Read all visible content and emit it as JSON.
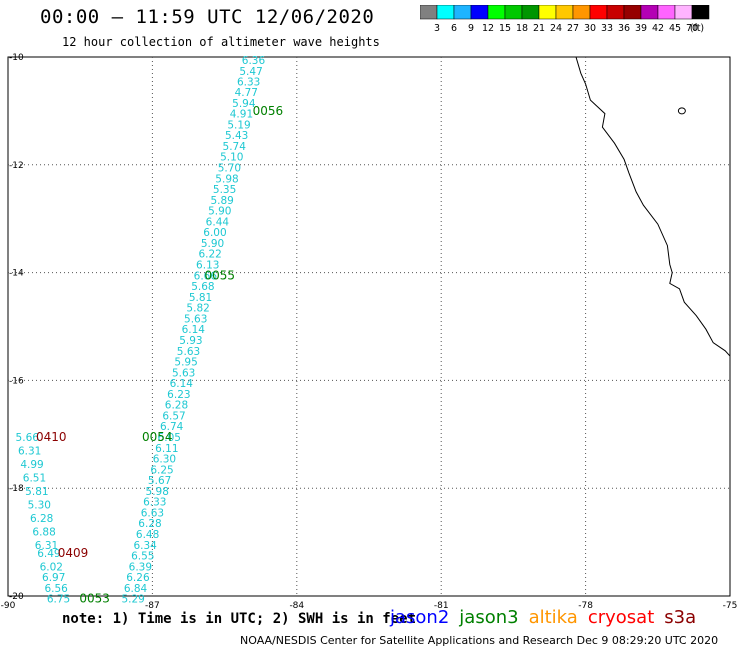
{
  "header": {
    "title": "00:00 – 11:59 UTC 12/06/2020",
    "subtitle": "12 hour collection of altimeter wave heights"
  },
  "colorbar": {
    "unit": "(ft)",
    "colors": [
      "#808080",
      "#00ffff",
      "#1eb4ff",
      "#0000ff",
      "#00ff00",
      "#00c800",
      "#009600",
      "#ffff00",
      "#ffc800",
      "#ff9600",
      "#ff0000",
      "#c80000",
      "#960000",
      "#b400b4",
      "#ff64ff",
      "#ffb4ff",
      "#000000"
    ],
    "labels": [
      "3",
      "6",
      "9",
      "12",
      "15",
      "18",
      "21",
      "24",
      "27",
      "30",
      "33",
      "36",
      "39",
      "42",
      "45",
      "70"
    ]
  },
  "map": {
    "lon_range": [
      -90,
      -75
    ],
    "lat_range": [
      -20,
      -10
    ],
    "lon_ticks": [
      "-90",
      "-87",
      "-84",
      "-81",
      "-78",
      "-75"
    ],
    "lat_ticks": [
      "-10",
      "-12",
      "-14",
      "-16",
      "-18",
      "-20"
    ],
    "coast_color": "#000000",
    "grid_color": "#555555"
  },
  "tracks": [
    {
      "name": "main-track",
      "color": "#1ec8d2",
      "points": [
        {
          "lat": -10.06,
          "lon": -84.9,
          "swh": "6.36"
        },
        {
          "lat": -10.26,
          "lon": -84.95,
          "swh": "5.47"
        },
        {
          "lat": -10.45,
          "lon": -85.0,
          "swh": "6.33"
        },
        {
          "lat": -10.65,
          "lon": -85.05,
          "swh": "4.77"
        },
        {
          "lat": -10.85,
          "lon": -85.1,
          "swh": "5.94"
        },
        {
          "lat": -11.05,
          "lon": -85.15,
          "swh": "4.91"
        },
        {
          "lat": -11.25,
          "lon": -85.2,
          "swh": "5.19"
        },
        {
          "lat": -11.45,
          "lon": -85.25,
          "swh": "5.43"
        },
        {
          "lat": -11.65,
          "lon": -85.3,
          "swh": "5.74"
        },
        {
          "lat": -11.85,
          "lon": -85.35,
          "swh": "5.10"
        },
        {
          "lat": -12.05,
          "lon": -85.4,
          "swh": "5.70"
        },
        {
          "lat": -12.25,
          "lon": -85.45,
          "swh": "5.98"
        },
        {
          "lat": -12.45,
          "lon": -85.5,
          "swh": "5.35"
        },
        {
          "lat": -12.65,
          "lon": -85.55,
          "swh": "5.89"
        },
        {
          "lat": -12.85,
          "lon": -85.6,
          "swh": "5.90"
        },
        {
          "lat": -13.05,
          "lon": -85.65,
          "swh": "6.44"
        },
        {
          "lat": -13.25,
          "lon": -85.7,
          "swh": "6.00"
        },
        {
          "lat": -13.45,
          "lon": -85.75,
          "swh": "5.90"
        },
        {
          "lat": -13.65,
          "lon": -85.8,
          "swh": "6.22"
        },
        {
          "lat": -13.85,
          "lon": -85.85,
          "swh": "6.13"
        },
        {
          "lat": -14.05,
          "lon": -85.9,
          "swh": "6.66"
        },
        {
          "lat": -14.25,
          "lon": -85.95,
          "swh": "5.68"
        },
        {
          "lat": -14.45,
          "lon": -86.0,
          "swh": "5.81"
        },
        {
          "lat": -14.65,
          "lon": -86.05,
          "swh": "5.82"
        },
        {
          "lat": -14.85,
          "lon": -86.1,
          "swh": "5.63"
        },
        {
          "lat": -15.05,
          "lon": -86.15,
          "swh": "6.14"
        },
        {
          "lat": -15.25,
          "lon": -86.2,
          "swh": "5.93"
        },
        {
          "lat": -15.45,
          "lon": -86.25,
          "swh": "5.63"
        },
        {
          "lat": -15.65,
          "lon": -86.3,
          "swh": "5.95"
        },
        {
          "lat": -15.85,
          "lon": -86.35,
          "swh": "5.63"
        },
        {
          "lat": -16.05,
          "lon": -86.4,
          "swh": "6.14"
        },
        {
          "lat": -16.25,
          "lon": -86.45,
          "swh": "6.23"
        },
        {
          "lat": -16.45,
          "lon": -86.5,
          "swh": "6.28"
        },
        {
          "lat": -16.65,
          "lon": -86.55,
          "swh": "6.57"
        },
        {
          "lat": -16.85,
          "lon": -86.6,
          "swh": "6.74"
        },
        {
          "lat": -17.05,
          "lon": -86.65,
          "swh": "6.05"
        },
        {
          "lat": -17.25,
          "lon": -86.7,
          "swh": "6.11"
        },
        {
          "lat": -17.45,
          "lon": -86.75,
          "swh": "6.30"
        },
        {
          "lat": -17.65,
          "lon": -86.8,
          "swh": "6.25"
        },
        {
          "lat": -17.85,
          "lon": -86.85,
          "swh": "5.67"
        },
        {
          "lat": -18.05,
          "lon": -86.9,
          "swh": "5.98"
        },
        {
          "lat": -18.25,
          "lon": -86.95,
          "swh": "6.33"
        },
        {
          "lat": -18.45,
          "lon": -87.0,
          "swh": "6.63"
        },
        {
          "lat": -18.65,
          "lon": -87.05,
          "swh": "6.28"
        },
        {
          "lat": -18.85,
          "lon": -87.1,
          "swh": "6.48"
        },
        {
          "lat": -19.05,
          "lon": -87.15,
          "swh": "6.34"
        },
        {
          "lat": -19.25,
          "lon": -87.2,
          "swh": "6.55"
        },
        {
          "lat": -19.45,
          "lon": -87.25,
          "swh": "6.39"
        },
        {
          "lat": -19.65,
          "lon": -87.3,
          "swh": "6.26"
        },
        {
          "lat": -19.85,
          "lon": -87.35,
          "swh": "6.84"
        },
        {
          "lat": -20.05,
          "lon": -87.4,
          "swh": "5.29"
        }
      ]
    },
    {
      "name": "second-track",
      "color": "#1ec8d2",
      "points": [
        {
          "lat": -17.05,
          "lon": -89.6,
          "swh": "5.66"
        },
        {
          "lat": -17.3,
          "lon": -89.55,
          "swh": "6.31"
        },
        {
          "lat": -17.55,
          "lon": -89.5,
          "swh": "4.99"
        },
        {
          "lat": -17.8,
          "lon": -89.45,
          "swh": "6.51"
        },
        {
          "lat": -18.05,
          "lon": -89.4,
          "swh": "5.81"
        },
        {
          "lat": -18.3,
          "lon": -89.35,
          "swh": "5.30"
        },
        {
          "lat": -18.55,
          "lon": -89.3,
          "swh": "6.28"
        },
        {
          "lat": -18.8,
          "lon": -89.25,
          "swh": "6.88"
        },
        {
          "lat": -19.05,
          "lon": -89.2,
          "swh": "6.31"
        },
        {
          "lat": -19.2,
          "lon": -89.15,
          "swh": "6.49"
        },
        {
          "lat": -19.45,
          "lon": -89.1,
          "swh": "6.02"
        },
        {
          "lat": -19.65,
          "lon": -89.05,
          "swh": "6.97"
        },
        {
          "lat": -19.85,
          "lon": -89.0,
          "swh": "6.56"
        },
        {
          "lat": -20.05,
          "lon": -88.95,
          "swh": "6.75"
        }
      ]
    }
  ],
  "time_labels": [
    {
      "text": "0056",
      "lat": -11.0,
      "lon": -84.6,
      "color": "#008000"
    },
    {
      "text": "0055",
      "lat": -14.05,
      "lon": -85.6,
      "color": "#008000"
    },
    {
      "text": "0054",
      "lat": -17.05,
      "lon": -86.9,
      "color": "#008000"
    },
    {
      "text": "0053",
      "lat": -20.05,
      "lon": -88.2,
      "color": "#008000"
    },
    {
      "text": "0410",
      "lat": -17.05,
      "lon": -89.1,
      "color": "#8b0000"
    },
    {
      "text": "0409",
      "lat": -19.2,
      "lon": -88.65,
      "color": "#8b0000"
    }
  ],
  "footer": {
    "note": "note: 1) Time is in UTC; 2) SWH is in feet",
    "missions": [
      {
        "name": "jason2",
        "color": "#0000ff"
      },
      {
        "name": "jason3",
        "color": "#008000"
      },
      {
        "name": "altika",
        "color": "#ff9600"
      },
      {
        "name": "cryosat",
        "color": "#ff0000"
      },
      {
        "name": "s3a",
        "color": "#8b0000"
      }
    ],
    "credit": "NOAA/NESDIS Center for Satellite Applications and Research    Dec  9 08:29:20 UTC 2020"
  }
}
